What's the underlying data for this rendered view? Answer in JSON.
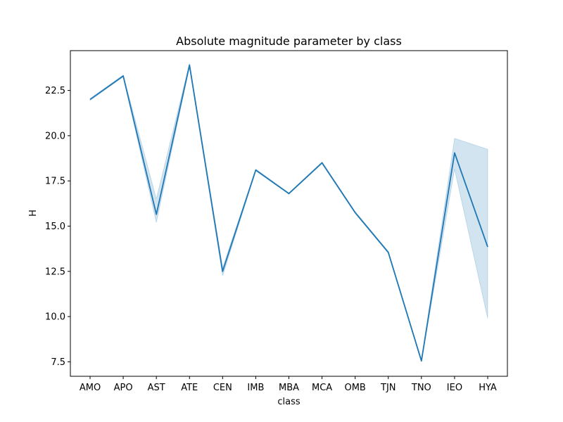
{
  "chart_data": {
    "type": "line",
    "title": "Absolute magnitude parameter by class",
    "xlabel": "class",
    "ylabel": "H",
    "categories": [
      "AMO",
      "APO",
      "AST",
      "ATE",
      "CEN",
      "IMB",
      "MBA",
      "MCA",
      "OMB",
      "TJN",
      "TNO",
      "IEO",
      "HYA"
    ],
    "series": [
      {
        "name": "",
        "values": [
          22.0,
          23.3,
          15.65,
          23.9,
          12.5,
          18.1,
          16.8,
          18.5,
          15.75,
          13.55,
          7.55,
          19.05,
          13.85
        ],
        "ci_lower": [
          21.95,
          23.25,
          15.2,
          23.8,
          12.25,
          18.05,
          16.77,
          18.45,
          15.7,
          13.5,
          7.5,
          18.15,
          9.9
        ],
        "ci_upper": [
          22.05,
          23.35,
          16.5,
          24.0,
          12.7,
          18.15,
          16.83,
          18.55,
          15.8,
          13.6,
          7.6,
          19.85,
          19.25
        ]
      }
    ],
    "ylim": [
      6.7,
      24.7
    ],
    "yticks": [
      7.5,
      10.0,
      12.5,
      15.0,
      17.5,
      20.0,
      22.5
    ],
    "ytick_labels": [
      "7.5",
      "10.0",
      "12.5",
      "15.0",
      "17.5",
      "20.0",
      "22.5"
    ],
    "colors": {
      "line": "#1f77b4",
      "band": "#1f77b4"
    },
    "grid": false,
    "legend": "none"
  }
}
